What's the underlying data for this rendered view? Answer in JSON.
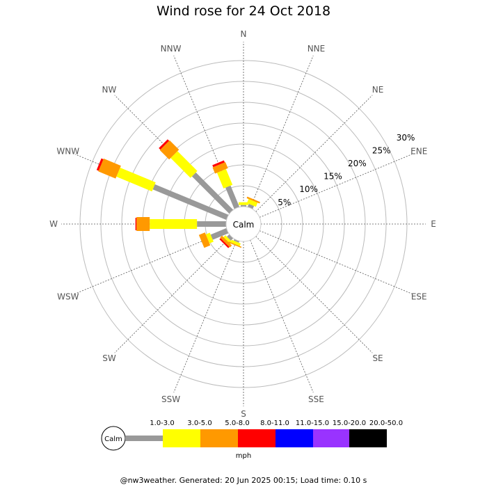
{
  "title": "Wind rose for 24 Oct 2018",
  "footer": "@nw3weather. Generated: 20 Jun 2025 00:15; Load time: 0.10 s",
  "chart_data": {
    "type": "windrose",
    "directions": [
      "N",
      "NNE",
      "NE",
      "ENE",
      "E",
      "ESE",
      "SE",
      "SSE",
      "S",
      "SSW",
      "SW",
      "WSW",
      "W",
      "WNW",
      "NW",
      "NNW"
    ],
    "radial_ticks": [
      "5%",
      "10%",
      "15%",
      "20%",
      "25%",
      "30%"
    ],
    "radial_values": [
      5,
      10,
      15,
      20,
      25,
      30
    ],
    "radial_max": 30,
    "calm_label": "Calm",
    "unit": "mph",
    "bins": [
      {
        "label": "1.0-3.0",
        "color": "#999999"
      },
      {
        "label": "3.0-5.0",
        "color": "#ffff00"
      },
      {
        "label": "5.0-8.0",
        "color": "#ff9900"
      },
      {
        "label": "8.0-11.0",
        "color": "#ff0000"
      },
      {
        "label": "11.0-15.0",
        "color": "#0000ff"
      },
      {
        "label": "15.0-20.0",
        "color": "#9933ff"
      },
      {
        "label": "20.0-50.0",
        "color": "#000000"
      }
    ],
    "series": [
      {
        "dir": "N",
        "values": [
          0.3,
          0.5,
          0,
          0,
          0,
          0,
          0
        ]
      },
      {
        "dir": "NNE",
        "values": [
          0.6,
          0.8,
          0.3,
          0,
          0,
          0,
          0
        ]
      },
      {
        "dir": "NNW",
        "values": [
          4.2,
          3.1,
          1.2,
          0.4,
          0,
          0,
          0
        ]
      },
      {
        "dir": "NW",
        "values": [
          9.6,
          5.1,
          2.4,
          0.4,
          0,
          0,
          0
        ]
      },
      {
        "dir": "WNW",
        "values": [
          14.5,
          7.0,
          3.4,
          0.4,
          0,
          0,
          0
        ]
      },
      {
        "dir": "W",
        "values": [
          5.3,
          8.6,
          2.4,
          0.2,
          0,
          0,
          0
        ]
      },
      {
        "dir": "WSW",
        "values": [
          3.1,
          0.8,
          1.2,
          0,
          0,
          0,
          0
        ]
      },
      {
        "dir": "SW",
        "values": [
          0.6,
          0.5,
          0.5,
          0.3,
          0,
          0,
          0
        ]
      },
      {
        "dir": "SSW",
        "values": [
          0.3,
          0.5,
          0.2,
          0,
          0,
          0,
          0
        ]
      }
    ]
  }
}
